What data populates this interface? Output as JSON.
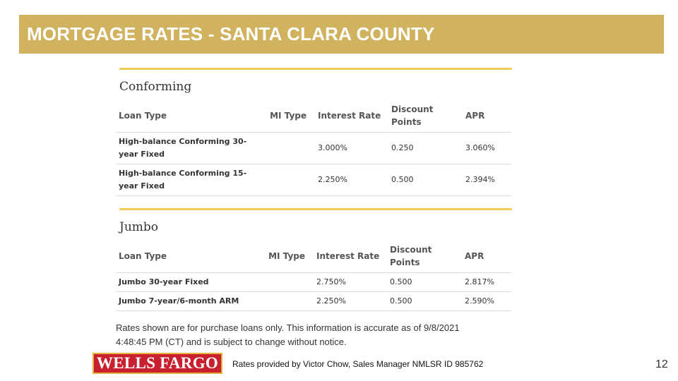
{
  "slide": {
    "title": "MORTGAGE RATES - SANTA CLARA COUNTY",
    "page_number": "12"
  },
  "conforming": {
    "title": "Conforming",
    "headers": {
      "loan_type": "Loan Type",
      "mi_type": "MI Type",
      "interest_rate": "Interest Rate",
      "discount_points_1": "Discount",
      "discount_points_2": "Points",
      "apr": "APR"
    },
    "rows": [
      {
        "name_1": "High-balance Conforming 30-",
        "name_2": "year Fixed",
        "mi_type": "",
        "interest_rate": "3.000%",
        "discount_points": "0.250",
        "apr": "3.060%"
      },
      {
        "name_1": "High-balance Conforming 15-",
        "name_2": "year Fixed",
        "mi_type": "",
        "interest_rate": "2.250%",
        "discount_points": "0.500",
        "apr": "2.394%"
      }
    ]
  },
  "jumbo": {
    "title": "Jumbo",
    "headers": {
      "loan_type": "Loan Type",
      "mi_type": "MI Type",
      "interest_rate": "Interest Rate",
      "discount_points_1": "Discount",
      "discount_points_2": "Points",
      "apr": "APR"
    },
    "rows": [
      {
        "name": "Jumbo 30-year Fixed",
        "mi_type": "",
        "interest_rate": "2.750%",
        "discount_points": "0.500",
        "apr": "2.817%"
      },
      {
        "name": "Jumbo 7-year/6-month ARM",
        "mi_type": "",
        "interest_rate": "2.250%",
        "discount_points": "0.500",
        "apr": "2.590%"
      }
    ]
  },
  "disclaimer": {
    "line_1": "Rates shown are for purchase loans only. This information is accurate as of 9/8/2021",
    "line_2": "4:48:45 PM (CT) and is subject to change without notice."
  },
  "footer": {
    "logo_text": "WELLS FARGO",
    "credit": "Rates provided by Victor Chow, Sales Manager NMLSR ID 985762"
  },
  "colors": {
    "title_bar": "#d0b25f",
    "gold_rule": "#f2cb5a",
    "loan_link": "#c0202f",
    "logo_red": "#c8202e"
  }
}
